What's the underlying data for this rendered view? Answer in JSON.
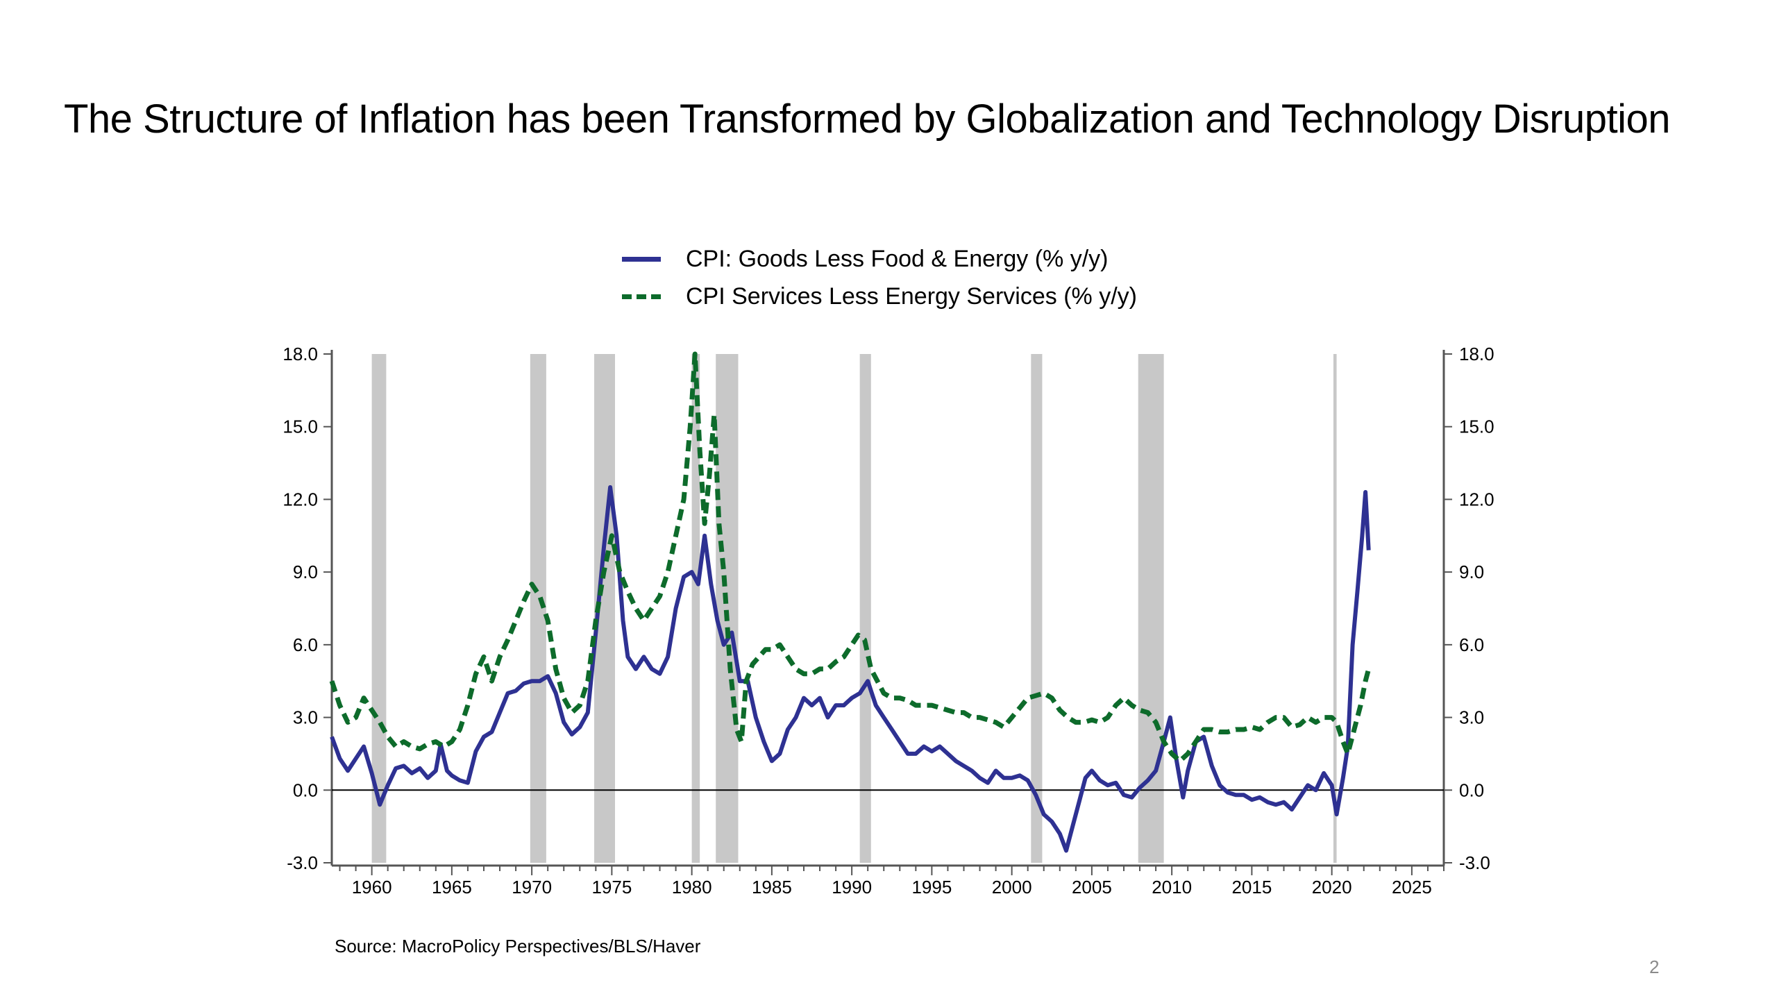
{
  "slide": {
    "title": "The Structure of Inflation has been Transformed by Globalization and Technology Disruption",
    "source": "Source:  MacroPolicy Perspectives/BLS/Haver",
    "page_number": "2"
  },
  "chart_data": {
    "type": "line",
    "title": "",
    "xlabel": "",
    "ylabel": "",
    "xlim": [
      1957.5,
      2027
    ],
    "ylim": [
      -3.0,
      18.0
    ],
    "x_ticks": [
      1960,
      1965,
      1970,
      1975,
      1980,
      1985,
      1990,
      1995,
      2000,
      2005,
      2010,
      2015,
      2020,
      2025
    ],
    "y_ticks": [
      -3.0,
      0.0,
      3.0,
      6.0,
      9.0,
      12.0,
      15.0,
      18.0
    ],
    "y_tick_labels": [
      "-3.0",
      "0.0",
      "3.0",
      "6.0",
      "9.0",
      "12.0",
      "15.0",
      "18.0"
    ],
    "dual_y_axis": true,
    "zero_line": true,
    "grid": false,
    "legend_position": "top-center",
    "recessions": [
      [
        1960.0,
        1960.9
      ],
      [
        1969.9,
        1970.9
      ],
      [
        1973.9,
        1975.2
      ],
      [
        1980.0,
        1980.5
      ],
      [
        1981.5,
        1982.9
      ],
      [
        1990.5,
        1991.2
      ],
      [
        2001.2,
        2001.9
      ],
      [
        2007.9,
        2009.5
      ],
      [
        2020.1,
        2020.3
      ]
    ],
    "series": [
      {
        "name": "CPI: Goods Less Food & Energy (% y/y)",
        "style": "solid",
        "color": "#2e3192",
        "points": [
          [
            1957.5,
            2.2
          ],
          [
            1958.0,
            1.3
          ],
          [
            1958.5,
            0.8
          ],
          [
            1959.0,
            1.3
          ],
          [
            1959.5,
            1.8
          ],
          [
            1960.0,
            0.7
          ],
          [
            1960.5,
            -0.6
          ],
          [
            1961.0,
            0.2
          ],
          [
            1961.5,
            0.9
          ],
          [
            1962.0,
            1.0
          ],
          [
            1962.5,
            0.7
          ],
          [
            1963.0,
            0.9
          ],
          [
            1963.5,
            0.5
          ],
          [
            1964.0,
            0.8
          ],
          [
            1964.3,
            1.9
          ],
          [
            1964.7,
            0.8
          ],
          [
            1965.0,
            0.6
          ],
          [
            1965.5,
            0.4
          ],
          [
            1966.0,
            0.3
          ],
          [
            1966.5,
            1.6
          ],
          [
            1967.0,
            2.2
          ],
          [
            1967.5,
            2.4
          ],
          [
            1968.0,
            3.2
          ],
          [
            1968.5,
            4.0
          ],
          [
            1969.0,
            4.1
          ],
          [
            1969.5,
            4.4
          ],
          [
            1970.0,
            4.5
          ],
          [
            1970.5,
            4.5
          ],
          [
            1971.0,
            4.7
          ],
          [
            1971.5,
            4.0
          ],
          [
            1972.0,
            2.8
          ],
          [
            1972.5,
            2.3
          ],
          [
            1973.0,
            2.6
          ],
          [
            1973.5,
            3.2
          ],
          [
            1974.0,
            6.5
          ],
          [
            1974.5,
            10.0
          ],
          [
            1974.9,
            12.5
          ],
          [
            1975.3,
            10.5
          ],
          [
            1975.7,
            7.0
          ],
          [
            1976.0,
            5.5
          ],
          [
            1976.5,
            5.0
          ],
          [
            1977.0,
            5.5
          ],
          [
            1977.5,
            5.0
          ],
          [
            1978.0,
            4.8
          ],
          [
            1978.5,
            5.5
          ],
          [
            1979.0,
            7.5
          ],
          [
            1979.5,
            8.8
          ],
          [
            1980.0,
            9.0
          ],
          [
            1980.4,
            8.5
          ],
          [
            1980.8,
            10.5
          ],
          [
            1981.2,
            8.5
          ],
          [
            1981.6,
            7.0
          ],
          [
            1982.0,
            6.0
          ],
          [
            1982.5,
            6.5
          ],
          [
            1983.0,
            4.5
          ],
          [
            1983.5,
            4.5
          ],
          [
            1984.0,
            3.0
          ],
          [
            1984.5,
            2.0
          ],
          [
            1985.0,
            1.2
          ],
          [
            1985.5,
            1.5
          ],
          [
            1986.0,
            2.5
          ],
          [
            1986.5,
            3.0
          ],
          [
            1987.0,
            3.8
          ],
          [
            1987.5,
            3.5
          ],
          [
            1988.0,
            3.8
          ],
          [
            1988.5,
            3.0
          ],
          [
            1989.0,
            3.5
          ],
          [
            1989.5,
            3.5
          ],
          [
            1990.0,
            3.8
          ],
          [
            1990.5,
            4.0
          ],
          [
            1991.0,
            4.5
          ],
          [
            1991.5,
            3.5
          ],
          [
            1992.0,
            3.0
          ],
          [
            1992.5,
            2.5
          ],
          [
            1993.0,
            2.0
          ],
          [
            1993.5,
            1.5
          ],
          [
            1994.0,
            1.5
          ],
          [
            1994.5,
            1.8
          ],
          [
            1995.0,
            1.6
          ],
          [
            1995.5,
            1.8
          ],
          [
            1996.0,
            1.5
          ],
          [
            1996.5,
            1.2
          ],
          [
            1997.0,
            1.0
          ],
          [
            1997.5,
            0.8
          ],
          [
            1998.0,
            0.5
          ],
          [
            1998.5,
            0.3
          ],
          [
            1999.0,
            0.8
          ],
          [
            1999.5,
            0.5
          ],
          [
            2000.0,
            0.5
          ],
          [
            2000.5,
            0.6
          ],
          [
            2001.0,
            0.4
          ],
          [
            2001.5,
            -0.2
          ],
          [
            2002.0,
            -1.0
          ],
          [
            2002.5,
            -1.3
          ],
          [
            2003.0,
            -1.8
          ],
          [
            2003.4,
            -2.5
          ],
          [
            2003.8,
            -1.5
          ],
          [
            2004.2,
            -0.5
          ],
          [
            2004.6,
            0.5
          ],
          [
            2005.0,
            0.8
          ],
          [
            2005.5,
            0.4
          ],
          [
            2006.0,
            0.2
          ],
          [
            2006.5,
            0.3
          ],
          [
            2007.0,
            -0.2
          ],
          [
            2007.5,
            -0.3
          ],
          [
            2008.0,
            0.1
          ],
          [
            2008.5,
            0.4
          ],
          [
            2009.0,
            0.8
          ],
          [
            2009.5,
            2.0
          ],
          [
            2009.9,
            3.0
          ],
          [
            2010.3,
            1.2
          ],
          [
            2010.7,
            -0.3
          ],
          [
            2011.0,
            0.8
          ],
          [
            2011.5,
            2.0
          ],
          [
            2012.0,
            2.2
          ],
          [
            2012.5,
            1.0
          ],
          [
            2013.0,
            0.2
          ],
          [
            2013.5,
            -0.1
          ],
          [
            2014.0,
            -0.2
          ],
          [
            2014.5,
            -0.2
          ],
          [
            2015.0,
            -0.4
          ],
          [
            2015.5,
            -0.3
          ],
          [
            2016.0,
            -0.5
          ],
          [
            2016.5,
            -0.6
          ],
          [
            2017.0,
            -0.5
          ],
          [
            2017.5,
            -0.8
          ],
          [
            2018.0,
            -0.3
          ],
          [
            2018.5,
            0.2
          ],
          [
            2019.0,
            0.0
          ],
          [
            2019.5,
            0.7
          ],
          [
            2020.0,
            0.2
          ],
          [
            2020.3,
            -1.0
          ],
          [
            2020.7,
            0.5
          ],
          [
            2021.0,
            1.8
          ],
          [
            2021.3,
            6.0
          ],
          [
            2021.6,
            8.2
          ],
          [
            2021.9,
            10.5
          ],
          [
            2022.1,
            12.3
          ],
          [
            2022.3,
            9.9
          ]
        ]
      },
      {
        "name": "CPI Services Less Energy Services (% y/y)",
        "style": "dashed",
        "color": "#0d6b2b",
        "points": [
          [
            1957.5,
            4.5
          ],
          [
            1958.0,
            3.5
          ],
          [
            1958.5,
            2.8
          ],
          [
            1959.0,
            3.0
          ],
          [
            1959.5,
            3.8
          ],
          [
            1960.0,
            3.3
          ],
          [
            1960.5,
            2.8
          ],
          [
            1961.0,
            2.2
          ],
          [
            1961.5,
            1.8
          ],
          [
            1962.0,
            2.0
          ],
          [
            1962.5,
            1.8
          ],
          [
            1963.0,
            1.7
          ],
          [
            1963.5,
            1.9
          ],
          [
            1964.0,
            2.0
          ],
          [
            1964.5,
            1.8
          ],
          [
            1965.0,
            2.0
          ],
          [
            1965.5,
            2.5
          ],
          [
            1966.0,
            3.5
          ],
          [
            1966.5,
            4.8
          ],
          [
            1967.0,
            5.5
          ],
          [
            1967.5,
            4.5
          ],
          [
            1968.0,
            5.5
          ],
          [
            1968.5,
            6.2
          ],
          [
            1969.0,
            7.0
          ],
          [
            1969.5,
            7.8
          ],
          [
            1970.0,
            8.5
          ],
          [
            1970.5,
            8.0
          ],
          [
            1971.0,
            7.0
          ],
          [
            1971.5,
            5.0
          ],
          [
            1972.0,
            3.8
          ],
          [
            1972.5,
            3.2
          ],
          [
            1973.0,
            3.5
          ],
          [
            1973.5,
            4.5
          ],
          [
            1974.0,
            7.0
          ],
          [
            1974.5,
            9.0
          ],
          [
            1975.0,
            10.5
          ],
          [
            1975.5,
            9.0
          ],
          [
            1976.0,
            8.2
          ],
          [
            1976.5,
            7.5
          ],
          [
            1977.0,
            7.0
          ],
          [
            1977.5,
            7.5
          ],
          [
            1978.0,
            8.0
          ],
          [
            1978.5,
            9.0
          ],
          [
            1979.0,
            10.5
          ],
          [
            1979.5,
            12.0
          ],
          [
            1979.9,
            15.0
          ],
          [
            1980.2,
            18.0
          ],
          [
            1980.5,
            14.0
          ],
          [
            1980.8,
            11.0
          ],
          [
            1981.1,
            13.0
          ],
          [
            1981.4,
            15.5
          ],
          [
            1981.7,
            11.0
          ],
          [
            1982.0,
            9.0
          ],
          [
            1982.4,
            5.0
          ],
          [
            1982.8,
            2.5
          ],
          [
            1983.1,
            2.0
          ],
          [
            1983.4,
            4.5
          ],
          [
            1983.8,
            5.2
          ],
          [
            1984.2,
            5.5
          ],
          [
            1984.6,
            5.8
          ],
          [
            1985.0,
            5.8
          ],
          [
            1985.5,
            6.0
          ],
          [
            1986.0,
            5.5
          ],
          [
            1986.5,
            5.0
          ],
          [
            1987.0,
            4.8
          ],
          [
            1987.5,
            4.8
          ],
          [
            1988.0,
            5.0
          ],
          [
            1988.5,
            5.0
          ],
          [
            1989.0,
            5.3
          ],
          [
            1989.5,
            5.5
          ],
          [
            1990.0,
            6.0
          ],
          [
            1990.4,
            6.4
          ],
          [
            1990.8,
            6.2
          ],
          [
            1991.2,
            5.0
          ],
          [
            1991.6,
            4.5
          ],
          [
            1992.0,
            4.0
          ],
          [
            1992.5,
            3.8
          ],
          [
            1993.0,
            3.8
          ],
          [
            1993.5,
            3.7
          ],
          [
            1994.0,
            3.5
          ],
          [
            1994.5,
            3.5
          ],
          [
            1995.0,
            3.5
          ],
          [
            1995.5,
            3.4
          ],
          [
            1996.0,
            3.3
          ],
          [
            1996.5,
            3.2
          ],
          [
            1997.0,
            3.2
          ],
          [
            1997.5,
            3.0
          ],
          [
            1998.0,
            3.0
          ],
          [
            1998.5,
            2.9
          ],
          [
            1999.0,
            2.8
          ],
          [
            1999.5,
            2.6
          ],
          [
            2000.0,
            3.0
          ],
          [
            2000.5,
            3.4
          ],
          [
            2001.0,
            3.8
          ],
          [
            2001.5,
            3.9
          ],
          [
            2002.0,
            4.0
          ],
          [
            2002.5,
            3.8
          ],
          [
            2003.0,
            3.3
          ],
          [
            2003.5,
            3.0
          ],
          [
            2004.0,
            2.8
          ],
          [
            2004.5,
            2.8
          ],
          [
            2005.0,
            2.9
          ],
          [
            2005.5,
            2.8
          ],
          [
            2006.0,
            3.0
          ],
          [
            2006.5,
            3.5
          ],
          [
            2007.0,
            3.8
          ],
          [
            2007.5,
            3.5
          ],
          [
            2008.0,
            3.3
          ],
          [
            2008.5,
            3.2
          ],
          [
            2009.0,
            2.8
          ],
          [
            2009.5,
            2.0
          ],
          [
            2010.0,
            1.5
          ],
          [
            2010.5,
            1.2
          ],
          [
            2011.0,
            1.5
          ],
          [
            2011.5,
            2.0
          ],
          [
            2012.0,
            2.5
          ],
          [
            2012.5,
            2.5
          ],
          [
            2013.0,
            2.4
          ],
          [
            2013.5,
            2.4
          ],
          [
            2014.0,
            2.5
          ],
          [
            2014.5,
            2.5
          ],
          [
            2015.0,
            2.6
          ],
          [
            2015.5,
            2.5
          ],
          [
            2016.0,
            2.8
          ],
          [
            2016.5,
            3.0
          ],
          [
            2017.0,
            3.0
          ],
          [
            2017.5,
            2.6
          ],
          [
            2018.0,
            2.7
          ],
          [
            2018.5,
            3.0
          ],
          [
            2019.0,
            2.8
          ],
          [
            2019.5,
            3.0
          ],
          [
            2020.0,
            3.0
          ],
          [
            2020.3,
            2.8
          ],
          [
            2020.7,
            2.0
          ],
          [
            2021.0,
            1.5
          ],
          [
            2021.4,
            2.5
          ],
          [
            2021.8,
            3.5
          ],
          [
            2022.1,
            4.5
          ],
          [
            2022.3,
            5.0
          ]
        ]
      }
    ]
  }
}
